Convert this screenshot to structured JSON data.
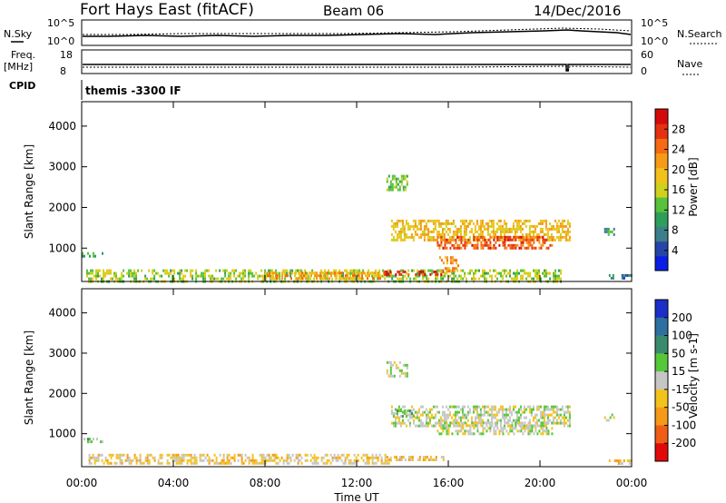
{
  "header": {
    "station": "Fort Hays East (fitACF)",
    "beam": "Beam 06",
    "date": "14/Dec/2016"
  },
  "status_panels": {
    "nsky_label": "N.Sky",
    "nsearch_label": "N.Search",
    "freq_label_1": "Freq.",
    "freq_label_2": "[MHz]",
    "nave_label": "Nave",
    "cpid_label": "CPID",
    "cpid_text": "themis -3300 IF",
    "noise_left_ticks": [
      "10^5",
      "10^0"
    ],
    "noise_right_ticks": [
      "10^5",
      "10^0"
    ],
    "freq_left_ticks": [
      "18",
      "8"
    ],
    "freq_right_ticks": [
      "60",
      "0"
    ]
  },
  "colors": {
    "power_scale": [
      "#0a1ee6",
      "#2546a8",
      "#3c7e8a",
      "#2f9e5b",
      "#58c23a",
      "#cfd11c",
      "#f2c21b",
      "#f59b18",
      "#f56a12",
      "#e43112",
      "#d40a0a"
    ],
    "velocity_scale": [
      "#1c2fc8",
      "#2d6fa0",
      "#3a8a6e",
      "#55c83a",
      "#c6c6c6",
      "#f3c31c",
      "#f59a19",
      "#ef5e16",
      "#e10a0a"
    ],
    "axis": "#000000"
  },
  "chart_data": [
    {
      "type": "heatmap",
      "name": "power",
      "ylabel": "Slant Range [km]",
      "xlabel": "Time UT",
      "xlim": [
        "00:00",
        "24:00"
      ],
      "ylim": [
        180,
        4600
      ],
      "y_ticks": [
        1000,
        2000,
        3000,
        4000
      ],
      "x_tick_labels": [
        "00:00",
        "04:00",
        "08:00",
        "12:00",
        "16:00",
        "20:00",
        "00:00"
      ],
      "colorbar_label": "Power [dB]",
      "colorbar_ticks": [
        "4",
        "8",
        "12",
        "16",
        "20",
        "24",
        "28"
      ],
      "colorbar_range": [
        0,
        30
      ],
      "regions": [
        {
          "t": [
            0.0,
            0.9
          ],
          "r": [
            780,
            900
          ],
          "value": 10
        },
        {
          "t": [
            0.2,
            21.0
          ],
          "r": [
            200,
            480
          ],
          "value": 14
        },
        {
          "t": [
            8.0,
            13.5
          ],
          "r": [
            280,
            420
          ],
          "value": 20
        },
        {
          "t": [
            13.2,
            15.8
          ],
          "r": [
            350,
            450
          ],
          "value": 26
        },
        {
          "t": [
            13.5,
            21.3
          ],
          "r": [
            1200,
            1700
          ],
          "value": 18
        },
        {
          "t": [
            15.5,
            20.5
          ],
          "r": [
            1000,
            1300
          ],
          "value": 24
        },
        {
          "t": [
            15.6,
            16.4
          ],
          "r": [
            400,
            800
          ],
          "value": 20
        },
        {
          "t": [
            13.3,
            14.2
          ],
          "r": [
            2450,
            2800
          ],
          "value": 12
        },
        {
          "t": [
            22.8,
            23.2
          ],
          "r": [
            1300,
            1500
          ],
          "value": 10
        },
        {
          "t": [
            23.0,
            24.0
          ],
          "r": [
            280,
            360
          ],
          "value": 6
        }
      ]
    },
    {
      "type": "heatmap",
      "name": "velocity",
      "ylabel": "Slant Range [km]",
      "xlabel": "Time UT",
      "xlim": [
        "00:00",
        "24:00"
      ],
      "ylim": [
        180,
        4600
      ],
      "y_ticks": [
        1000,
        2000,
        3000,
        4000
      ],
      "x_tick_labels": [
        "00:00",
        "04:00",
        "08:00",
        "12:00",
        "16:00",
        "20:00",
        "00:00"
      ],
      "colorbar_label": "Velocity [m s-1]",
      "colorbar_ticks": [
        "200",
        "100",
        "50",
        "15",
        "-15",
        "-50",
        "-100",
        "-200"
      ],
      "colorbar_range": [
        -250,
        250
      ],
      "regions": [
        {
          "t": [
            0.0,
            0.9
          ],
          "r": [
            780,
            900
          ],
          "value": 40
        },
        {
          "t": [
            0.3,
            13.5
          ],
          "r": [
            250,
            500
          ],
          "value": -40
        },
        {
          "t": [
            13.3,
            15.8
          ],
          "r": [
            350,
            450
          ],
          "value": -45
        },
        {
          "t": [
            13.5,
            21.3
          ],
          "r": [
            1200,
            1700
          ],
          "value": 0
        },
        {
          "t": [
            15.5,
            20.5
          ],
          "r": [
            1000,
            1300
          ],
          "value": 0
        },
        {
          "t": [
            13.5,
            14.5
          ],
          "r": [
            1450,
            1600
          ],
          "value": 40
        },
        {
          "t": [
            13.3,
            14.2
          ],
          "r": [
            2450,
            2800
          ],
          "value": 0
        },
        {
          "t": [
            22.8,
            23.2
          ],
          "r": [
            1300,
            1500
          ],
          "value": 0
        },
        {
          "t": [
            23.0,
            24.0
          ],
          "r": [
            280,
            360
          ],
          "value": -60
        }
      ]
    }
  ]
}
